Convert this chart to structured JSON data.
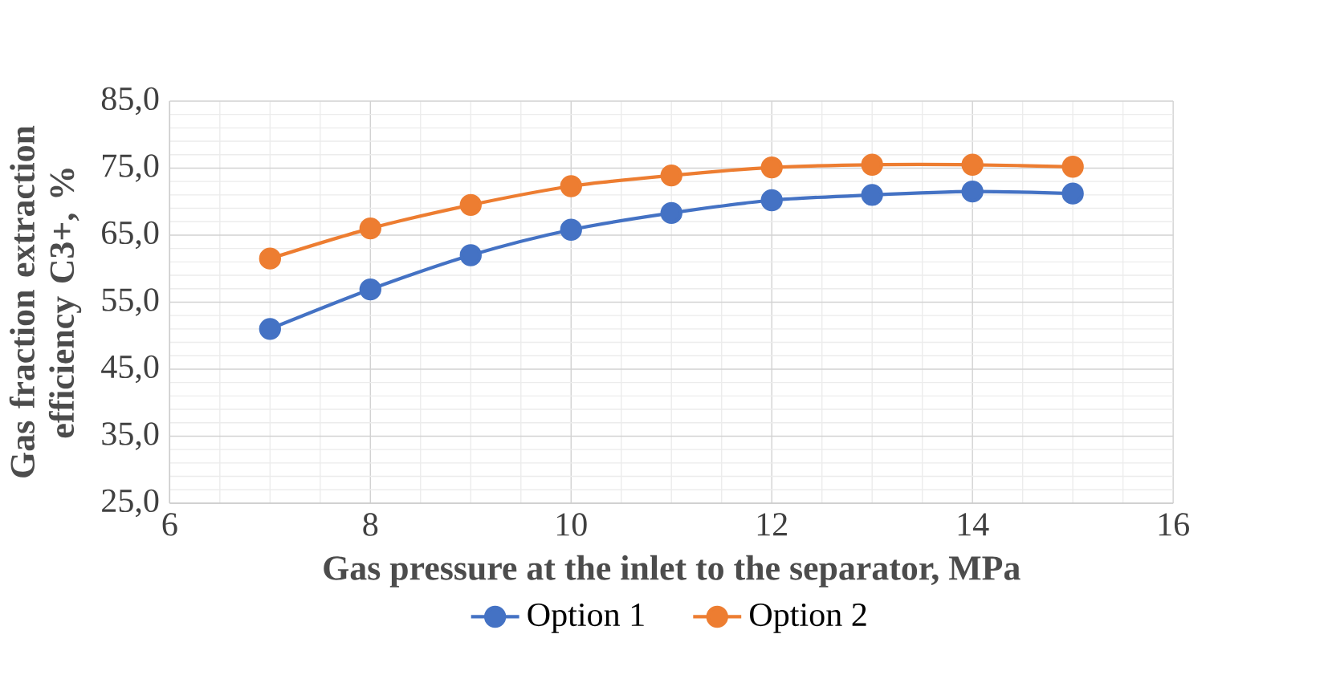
{
  "chart_data": {
    "type": "line",
    "xlabel": "Gas pressure at the inlet to the separator, MPa",
    "ylabel": "Gas fraction extraction efficiency C3+, %",
    "x": [
      7,
      8,
      9,
      10,
      11,
      12,
      13,
      14,
      15
    ],
    "series": [
      {
        "name": "Option 1",
        "color": "#4472c4",
        "values": [
          51.0,
          56.9,
          62.0,
          65.8,
          68.3,
          70.2,
          71.0,
          71.5,
          71.2
        ]
      },
      {
        "name": "Option 2",
        "color": "#ed7d31",
        "values": [
          61.5,
          66.0,
          69.5,
          72.3,
          73.9,
          75.1,
          75.5,
          75.5,
          75.2
        ]
      }
    ],
    "xlim": [
      6,
      16
    ],
    "xticks": [
      6,
      8,
      10,
      12,
      14,
      16
    ],
    "ylim": [
      25,
      85
    ],
    "yticks": [
      {
        "value": 25,
        "label": "25,0"
      },
      {
        "value": 35,
        "label": "35,0"
      },
      {
        "value": 45,
        "label": "45,0"
      },
      {
        "value": 55,
        "label": "55,0"
      },
      {
        "value": 65,
        "label": "65,0"
      },
      {
        "value": 75,
        "label": "75,0"
      },
      {
        "value": 85,
        "label": "85,0"
      }
    ],
    "grid": true,
    "legend": "bottom",
    "marker": "circle",
    "line_style": "solid"
  }
}
